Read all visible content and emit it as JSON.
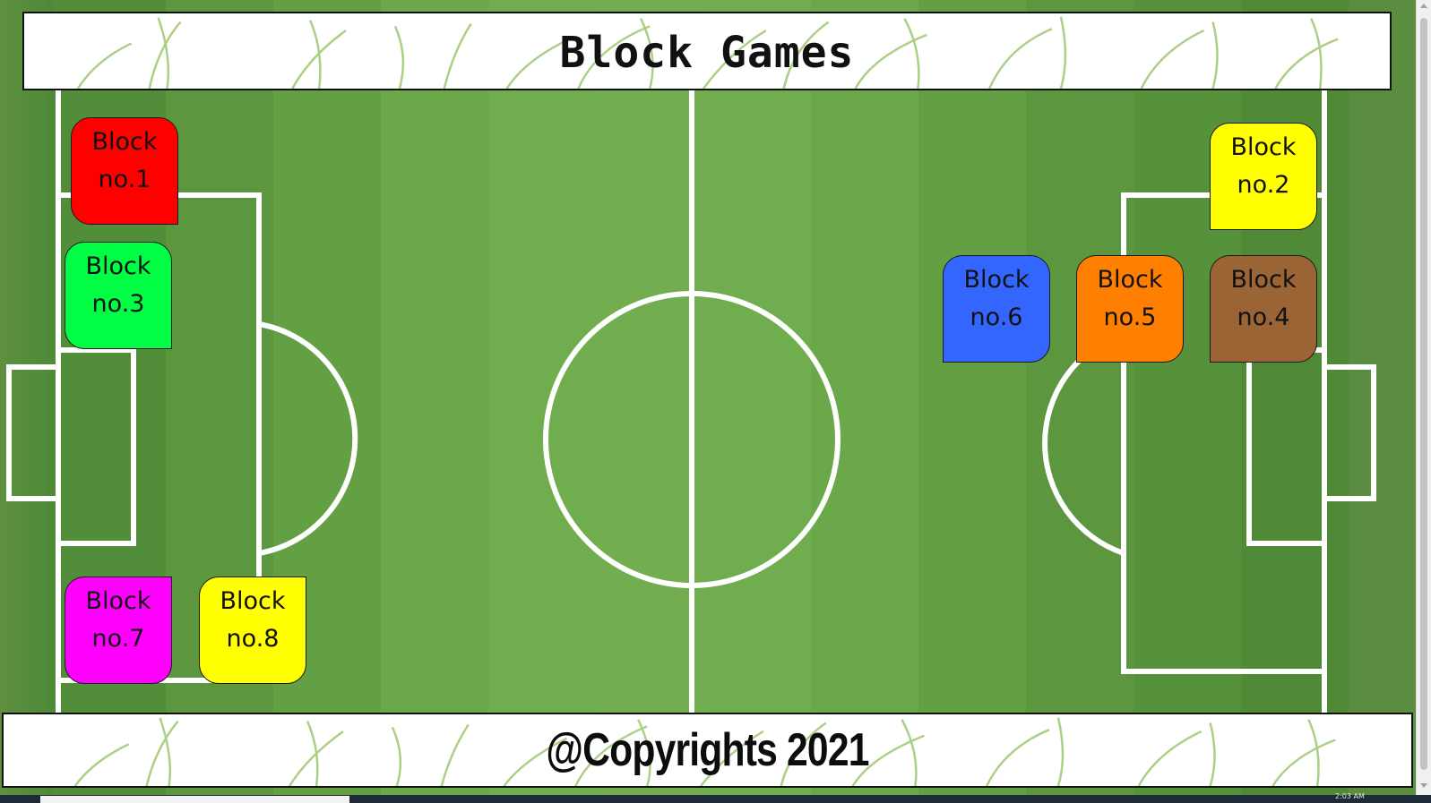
{
  "header": {
    "title": "Block Games"
  },
  "footer": {
    "copyright": "@Copyrights 2021"
  },
  "blocks": [
    {
      "line1": "Block",
      "line2": "no.1",
      "color": "#ff0000"
    },
    {
      "line1": "Block",
      "line2": "no.2",
      "color": "#ffff00"
    },
    {
      "line1": "Block",
      "line2": "no.3",
      "color": "#00ff44"
    },
    {
      "line1": "Block",
      "line2": "no.4",
      "color": "#9b6434"
    },
    {
      "line1": "Block",
      "line2": "no.5",
      "color": "#ff7f00"
    },
    {
      "line1": "Block",
      "line2": "no.6",
      "color": "#3366ff"
    },
    {
      "line1": "Block",
      "line2": "no.7",
      "color": "#ff00ff"
    },
    {
      "line1": "Block",
      "line2": "no.8",
      "color": "#ffff00"
    }
  ],
  "taskbar": {
    "clock": "2:03 AM"
  },
  "colors": {
    "pitch_line": "#ffffff",
    "banner_bg": "#ffffff"
  }
}
